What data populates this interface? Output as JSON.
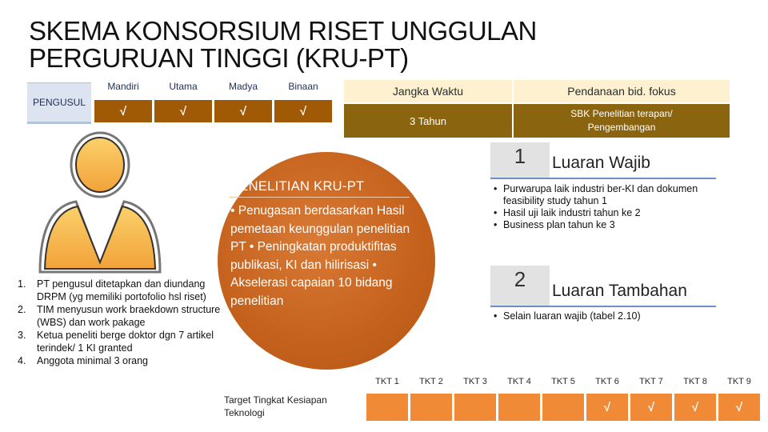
{
  "title": "SKEMA KONSORSIUM RISET UNGGULAN PERGURUAN TINGGI (KRU-PT)",
  "pengusul": {
    "label": "PENGUSUL",
    "columns": [
      "Mandiri",
      "Utama",
      "Madya",
      "Binaan"
    ],
    "checks": [
      "√",
      "√",
      "√",
      "√"
    ]
  },
  "jangka_waktu": {
    "header": "Jangka Waktu",
    "value": "3 Tahun"
  },
  "pendanaan": {
    "header": "Pendanaan  bid. fokus",
    "value": "SBK Penelitian terapan/ Pengembangan"
  },
  "requirements": [
    {
      "num": "1.",
      "text": "PT pengusul ditetapkan dan diundang DRPM (yg memiliki portofolio hsl riset)"
    },
    {
      "num": "2.",
      "text": "TIM menyusun work braekdown structure (WBS) dan work pakage"
    },
    {
      "num": "3.",
      "text": "Ketua peneliti berge doktor dgn 7 artikel terindek/ 1 KI granted"
    },
    {
      "num": "4.",
      "text": "Anggota minimal 3 orang"
    }
  ],
  "penelitian": {
    "title": "PENELITIAN KRU-PT",
    "body": "• Penugasan berdasarkan Hasil pemetaan keunggulan penelitian PT • Peningkatan produktifitas publikasi, KI dan hilirisasi • Akselerasi capaian 10 bidang penelitian"
  },
  "luaran_wajib": {
    "number": "1",
    "title": "Luaran Wajib",
    "items": [
      "Purwarupa laik industri ber-KI dan dokumen feasibility study tahun 1",
      "Hasil uji laik industri tahun ke 2",
      "Business plan tahun ke 3"
    ]
  },
  "luaran_tambahan": {
    "number": "2",
    "title": "Luaran Tambahan",
    "items": [
      "Selain luaran wajib (tabel 2.10)"
    ]
  },
  "tkt": {
    "description": "Target Tingkat Kesiapan Teknologi",
    "levels": [
      "TKT 1",
      "TKT 2",
      "TKT 3",
      "TKT 4",
      "TKT 5",
      "TKT 6",
      "TKT 7",
      "TKT 8",
      "TKT 9"
    ],
    "checks": [
      "",
      "",
      "",
      "",
      "",
      "√",
      "√",
      "√",
      "√"
    ]
  }
}
